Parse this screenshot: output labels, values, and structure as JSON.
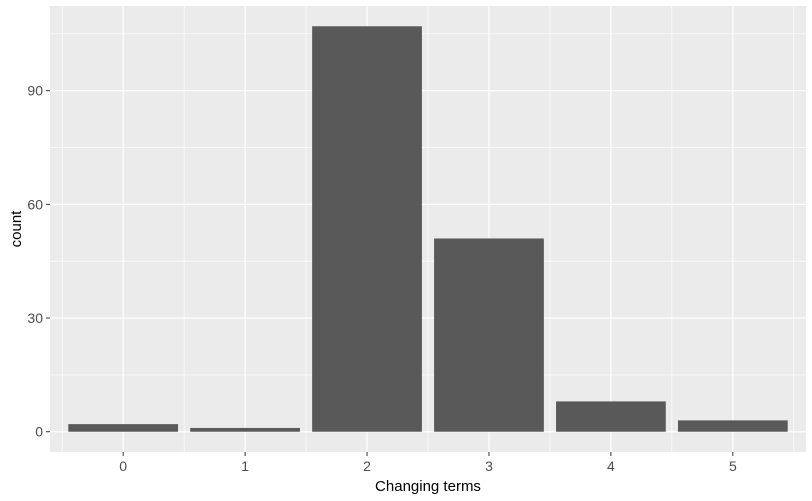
{
  "chart_data": {
    "type": "bar",
    "categories": [
      "0",
      "1",
      "2",
      "3",
      "4",
      "5"
    ],
    "values": [
      2,
      1,
      107,
      51,
      8,
      3
    ],
    "xlabel": "Changing terms",
    "ylabel": "count",
    "ylim": [
      -5.35,
      112.35
    ],
    "yticks": [
      0,
      30,
      60,
      90
    ],
    "ytick_labels": [
      "0",
      "30",
      "60",
      "90"
    ],
    "grid": true,
    "colors": {
      "panel": "#ebebeb",
      "grid_major": "#ffffff",
      "bar": "#595959",
      "tick_text": "#4d4d4d",
      "tick_mark": "#333333"
    }
  }
}
